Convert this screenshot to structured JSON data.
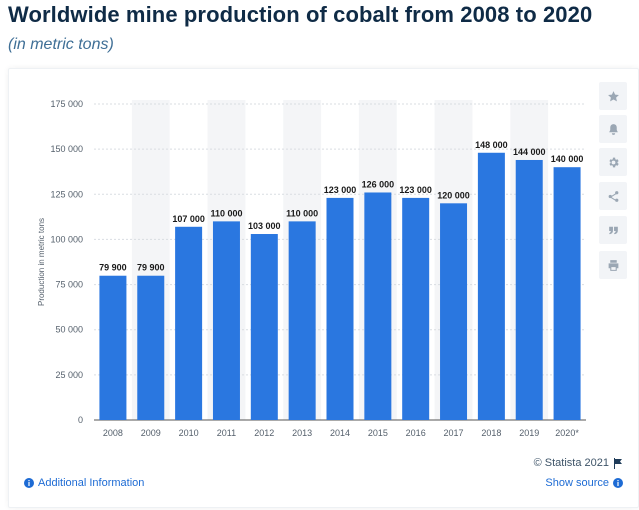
{
  "header": {
    "title": "Worldwide mine production of cobalt from 2008 to 2020",
    "subtitle": "(in metric tons)"
  },
  "chart_data": {
    "type": "bar",
    "title": "Worldwide mine production of cobalt from 2008 to 2020",
    "subtitle": "(in metric tons)",
    "xlabel": "",
    "ylabel": "Production in metric tons",
    "ylim": [
      0,
      175000
    ],
    "yticks": [
      0,
      25000,
      50000,
      75000,
      100000,
      125000,
      150000,
      175000
    ],
    "ytick_labels": [
      "0",
      "25 000",
      "50 000",
      "75 000",
      "100 000",
      "125 000",
      "150 000",
      "175 000"
    ],
    "categories": [
      "2008",
      "2009",
      "2010",
      "2011",
      "2012",
      "2013",
      "2014",
      "2015",
      "2016",
      "2017",
      "2018",
      "2019",
      "2020*"
    ],
    "values": [
      79900,
      79900,
      107000,
      110000,
      103000,
      110000,
      123000,
      126000,
      123000,
      120000,
      148000,
      144000,
      140000
    ],
    "value_labels": [
      "79 900",
      "79 900",
      "107 000",
      "110 000",
      "103 000",
      "110 000",
      "123 000",
      "126 000",
      "123 000",
      "120 000",
      "148 000",
      "144 000",
      "140 000"
    ],
    "bar_color": "#2a77e0",
    "grid": true
  },
  "sidebar_tools": [
    {
      "icon": "star-icon"
    },
    {
      "icon": "bell-icon"
    },
    {
      "icon": "gear-icon"
    },
    {
      "icon": "share-icon"
    },
    {
      "icon": "quote-icon"
    },
    {
      "icon": "print-icon"
    }
  ],
  "footer": {
    "copyright": "© Statista 2021",
    "additional_info": "Additional Information",
    "show_source": "Show source"
  }
}
